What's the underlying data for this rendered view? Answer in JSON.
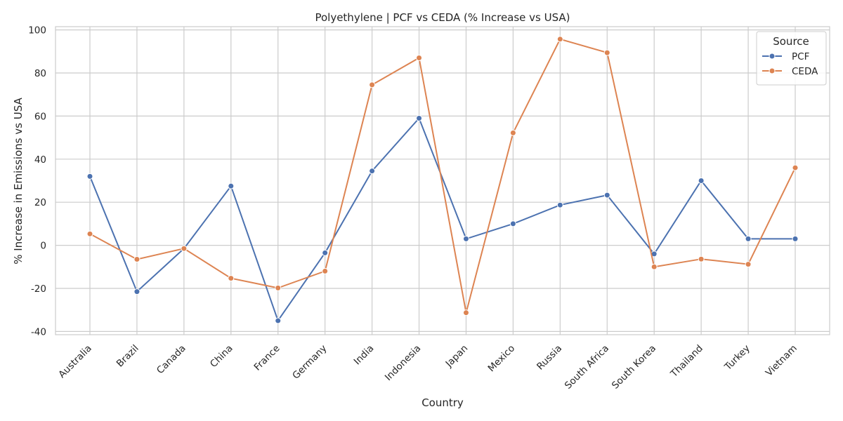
{
  "chart_data": {
    "type": "line",
    "title": "Polyethylene | PCF vs CEDA (% Increase vs USA)",
    "xlabel": "Country",
    "ylabel": "% Increase in Emissions vs USA",
    "categories": [
      "Australia",
      "Brazil",
      "Canada",
      "China",
      "France",
      "Germany",
      "India",
      "Indonesia",
      "Japan",
      "Mexico",
      "Russia",
      "South Africa",
      "South Korea",
      "Thailand",
      "Turkey",
      "Vietnam"
    ],
    "series": [
      {
        "name": "PCF",
        "color": "#4c72b0",
        "values": [
          32,
          -21.5,
          -1.5,
          27.5,
          -35,
          -3.5,
          34.5,
          59,
          3,
          10,
          18.7,
          23.3,
          -4,
          30,
          3,
          3
        ]
      },
      {
        "name": "CEDA",
        "color": "#dd8452",
        "values": [
          5.3,
          -6.5,
          -1.5,
          -15.3,
          -19.8,
          -12,
          74.5,
          87,
          -31.3,
          52.2,
          95.7,
          89.4,
          -10,
          -6.4,
          -8.8,
          36
        ]
      }
    ],
    "ylim": [
      -41.5,
      101.5
    ],
    "yticks": [
      -40,
      -20,
      0,
      20,
      40,
      60,
      80,
      100
    ],
    "xtick_rotation": 45,
    "grid": true,
    "legend": {
      "title": "Source",
      "placement": "top-right"
    }
  }
}
